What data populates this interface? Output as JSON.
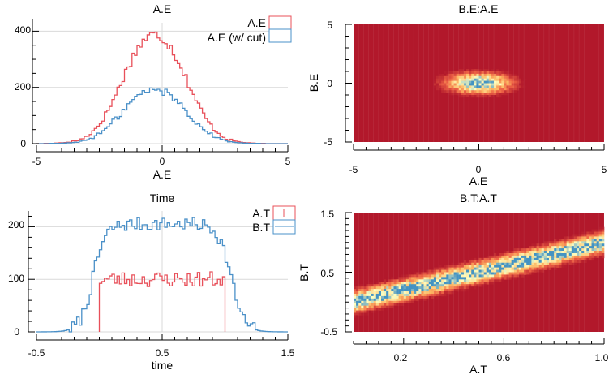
{
  "chart_data": [
    {
      "id": "panel1",
      "type": "line",
      "title": "A.E",
      "xlabel": "A.E",
      "ylabel": "",
      "xlim": [
        -5,
        5
      ],
      "ylim": [
        0,
        430
      ],
      "xticks": [
        -5,
        0,
        5
      ],
      "yticks": [
        0,
        200,
        400
      ],
      "grid": true,
      "legend": "top-right",
      "series": [
        {
          "name": "A.E",
          "color": "#e8505a",
          "values": [
            0,
            0,
            0,
            1,
            1,
            1,
            1,
            2,
            2,
            3,
            3,
            4,
            5,
            6,
            8,
            10,
            12,
            15,
            19,
            24,
            30,
            37,
            45,
            54,
            64,
            76,
            89,
            104,
            120,
            137,
            155,
            174,
            194,
            214,
            234,
            254,
            274,
            293,
            311,
            327,
            342,
            355,
            366,
            374,
            380,
            384,
            386,
            386,
            384,
            380,
            374,
            366,
            355,
            342,
            327,
            311,
            293,
            274,
            254,
            234,
            214,
            194,
            174,
            155,
            137,
            120,
            104,
            89,
            76,
            64,
            54,
            45,
            37,
            30,
            24,
            19,
            15,
            12,
            10,
            8,
            6,
            5,
            4,
            3,
            3,
            2,
            2,
            1,
            1,
            1,
            1,
            0,
            0,
            0,
            0,
            0,
            0,
            0,
            0,
            0
          ]
        },
        {
          "name": "A.E (w/ cut)",
          "color": "#4a90c8",
          "values": [
            0,
            0,
            0,
            0,
            0,
            1,
            1,
            1,
            1,
            1,
            2,
            2,
            3,
            3,
            4,
            5,
            6,
            8,
            10,
            12,
            15,
            19,
            23,
            27,
            32,
            38,
            45,
            52,
            60,
            69,
            78,
            87,
            97,
            107,
            117,
            127,
            137,
            146,
            155,
            163,
            170,
            176,
            181,
            185,
            188,
            190,
            191,
            191,
            190,
            188,
            185,
            181,
            176,
            170,
            163,
            155,
            146,
            137,
            127,
            117,
            107,
            97,
            87,
            78,
            69,
            60,
            52,
            45,
            38,
            32,
            27,
            23,
            19,
            15,
            12,
            10,
            8,
            6,
            5,
            4,
            3,
            3,
            2,
            2,
            1,
            1,
            1,
            1,
            1,
            0,
            0,
            0,
            0,
            0,
            0,
            0,
            0,
            0,
            0,
            0
          ]
        }
      ]
    },
    {
      "id": "panel2",
      "type": "heatmap",
      "title": "B.E:A.E",
      "xlabel": "A.E",
      "ylabel": "B.E",
      "xlim": [
        -5,
        5
      ],
      "ylim": [
        -5,
        5
      ],
      "xticks": [
        -5,
        0,
        5
      ],
      "yticks": [
        -5,
        0,
        5
      ],
      "center": [
        0,
        0
      ],
      "spread": [
        0.9,
        0.6
      ]
    },
    {
      "id": "panel3",
      "type": "line",
      "title": "Time",
      "xlabel": "time",
      "ylabel": "",
      "xlim": [
        -0.5,
        1.5
      ],
      "ylim": [
        0,
        230
      ],
      "xticks": [
        -0.5,
        0.5,
        1.5
      ],
      "yticks": [
        0,
        100,
        200
      ],
      "grid": true,
      "legend": "top-right",
      "series": [
        {
          "name": "A.T",
          "color": "#e8505a",
          "x_range": [
            0,
            1
          ],
          "level": 100
        },
        {
          "name": "B.T",
          "color": "#4a90c8",
          "x_range": [
            -0.5,
            1.5
          ],
          "plateau_range": [
            -0.05,
            1.05
          ],
          "level": 205
        }
      ]
    },
    {
      "id": "panel4",
      "type": "heatmap",
      "title": "B.T:A.T",
      "xlabel": "A.T",
      "ylabel": "B.T",
      "xlim": [
        0,
        1
      ],
      "ylim": [
        -0.5,
        1.5
      ],
      "xticks": [
        0.2,
        0.6,
        1.0
      ],
      "ytick_labels": [
        "-0.5",
        "0.5",
        "1.5"
      ],
      "yticks": [
        -0.5,
        0.5,
        1.5
      ],
      "band": {
        "y_at_x0": 0.0,
        "y_at_x1": 1.0,
        "width": 0.12
      }
    }
  ],
  "tick_labels": {
    "p1_x": [
      "-5",
      "0",
      "5"
    ],
    "p1_y": [
      "0",
      "200",
      "400"
    ],
    "p2_x": [
      "-5",
      "0",
      "5"
    ],
    "p2_y": [
      "-5",
      "0",
      "5"
    ],
    "p3_x": [
      "-0.5",
      "0.5",
      "1.5"
    ],
    "p3_y": [
      "0",
      "100",
      "200"
    ],
    "p4_x": [
      "0.2",
      "0.6",
      "1.0"
    ],
    "p4_y": [
      "-0.5",
      "0.5",
      "1.5"
    ]
  },
  "colors": {
    "heat_low": "#b2182b",
    "heat_mid": "#fdb863",
    "heat_high": "#ffffbf",
    "heat_peak": "#4393c3",
    "grid": "#d9d9d9"
  }
}
